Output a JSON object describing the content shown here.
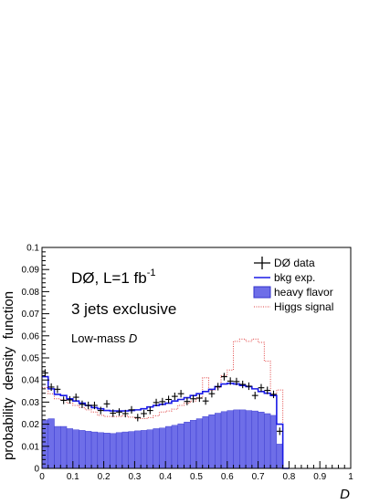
{
  "chart_data": {
    "type": "histogram",
    "xlabel": "D",
    "ylabel": "probability  density  function",
    "xlim": [
      0,
      1
    ],
    "ylim": [
      0,
      0.1
    ],
    "x_ticks": [
      "0",
      "0.1",
      "0.2",
      "0.3",
      "0.4",
      "0.5",
      "0.6",
      "0.7",
      "0.8",
      "0.9",
      "1"
    ],
    "y_ticks": [
      "0",
      "0.01",
      "0.02",
      "0.03",
      "0.04",
      "0.05",
      "0.06",
      "0.07",
      "0.08",
      "0.09",
      "0.1"
    ],
    "bin_width": 0.02,
    "annotations": {
      "experiment": "DØ, L=1 fb",
      "experiment_superscript": "-1",
      "selection": "3 jets exclusive",
      "region_prefix": "Low-mass ",
      "region_var": "D"
    },
    "legend_position": "top-right",
    "colors": {
      "data": "#000000",
      "bkg": "#1a1ae6",
      "heavy_fill": "#6e6ee8",
      "heavy_edge": "#3333cc",
      "higgs": "#e04040"
    },
    "series": [
      {
        "name": "DØ data",
        "kind": "points",
        "x": [
          0.01,
          0.03,
          0.05,
          0.07,
          0.09,
          0.11,
          0.13,
          0.15,
          0.17,
          0.19,
          0.21,
          0.23,
          0.25,
          0.27,
          0.29,
          0.31,
          0.33,
          0.35,
          0.37,
          0.39,
          0.41,
          0.43,
          0.45,
          0.47,
          0.49,
          0.51,
          0.53,
          0.55,
          0.57,
          0.59,
          0.61,
          0.63,
          0.65,
          0.67,
          0.69,
          0.71,
          0.73,
          0.75,
          0.77,
          0.79
        ],
        "y": [
          0.0432,
          0.0368,
          0.0358,
          0.0308,
          0.031,
          0.0322,
          0.029,
          0.0285,
          0.0285,
          0.0262,
          0.0292,
          0.025,
          0.0255,
          0.0248,
          0.0265,
          0.023,
          0.0248,
          0.0262,
          0.0298,
          0.0302,
          0.0312,
          0.0326,
          0.0338,
          0.0303,
          0.0315,
          0.0318,
          0.0305,
          0.0338,
          0.037,
          0.0415,
          0.0395,
          0.0393,
          0.038,
          0.0372,
          0.033,
          0.0365,
          0.0353,
          0.0335,
          0.0168,
          0.0
        ],
        "yerr": 0.0017
      },
      {
        "name": "bkg exp.",
        "kind": "step",
        "values": [
          0.0415,
          0.036,
          0.0335,
          0.033,
          0.0315,
          0.0305,
          0.0295,
          0.0285,
          0.0275,
          0.027,
          0.0262,
          0.026,
          0.026,
          0.026,
          0.0262,
          0.0265,
          0.027,
          0.0278,
          0.0285,
          0.029,
          0.0295,
          0.0305,
          0.0312,
          0.032,
          0.033,
          0.0338,
          0.0348,
          0.0358,
          0.037,
          0.0382,
          0.0385,
          0.0382,
          0.0375,
          0.037,
          0.036,
          0.0348,
          0.034,
          0.033,
          0.02,
          0.0
        ]
      },
      {
        "name": "heavy flavor",
        "kind": "filled",
        "values": [
          0.022,
          0.0225,
          0.019,
          0.019,
          0.018,
          0.0175,
          0.0172,
          0.0168,
          0.0165,
          0.0162,
          0.016,
          0.0158,
          0.0162,
          0.0165,
          0.0167,
          0.017,
          0.0172,
          0.0175,
          0.018,
          0.0183,
          0.019,
          0.0195,
          0.0202,
          0.021,
          0.0218,
          0.0225,
          0.0235,
          0.0243,
          0.025,
          0.0257,
          0.0262,
          0.0265,
          0.0265,
          0.0262,
          0.026,
          0.0255,
          0.0248,
          0.024,
          0.011,
          0.0
        ]
      },
      {
        "name": "Higgs signal",
        "kind": "dotted-step",
        "values": [
          0.0365,
          0.0338,
          0.0315,
          0.031,
          0.0295,
          0.0285,
          0.0275,
          0.0265,
          0.0255,
          0.024,
          0.0235,
          0.0235,
          0.0235,
          0.0238,
          0.0232,
          0.0225,
          0.0225,
          0.023,
          0.0238,
          0.0255,
          0.026,
          0.0268,
          0.0285,
          0.0295,
          0.0305,
          0.032,
          0.041,
          0.0355,
          0.0365,
          0.042,
          0.0445,
          0.0575,
          0.0585,
          0.0575,
          0.0585,
          0.057,
          0.0485,
          0.0335,
          0.0355,
          0.0
        ]
      }
    ]
  }
}
